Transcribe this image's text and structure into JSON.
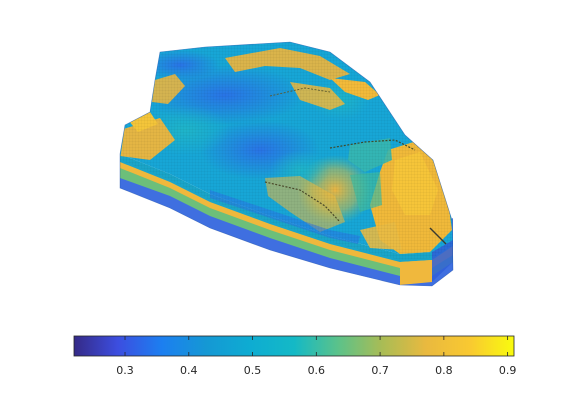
{
  "chart_data": {
    "type": "heatmap",
    "title": "",
    "xlabel": "",
    "ylabel": "",
    "colormap": "parula",
    "colorbar": {
      "location": "bottom",
      "range": [
        0.22,
        0.91
      ],
      "ticks": [
        0.3,
        0.4,
        0.5,
        0.6,
        0.7,
        0.8,
        0.9
      ],
      "tick_labels": [
        "0.3",
        "0.4",
        "0.5",
        "0.6",
        "0.7",
        "0.8",
        "0.9"
      ]
    },
    "colors": {
      "low": "#352a87",
      "mid_blue": "#1c7ff0",
      "cyan": "#14b9c6",
      "green": "#7dc56a",
      "orange": "#f9b93a",
      "high": "#f9fb0e"
    }
  }
}
